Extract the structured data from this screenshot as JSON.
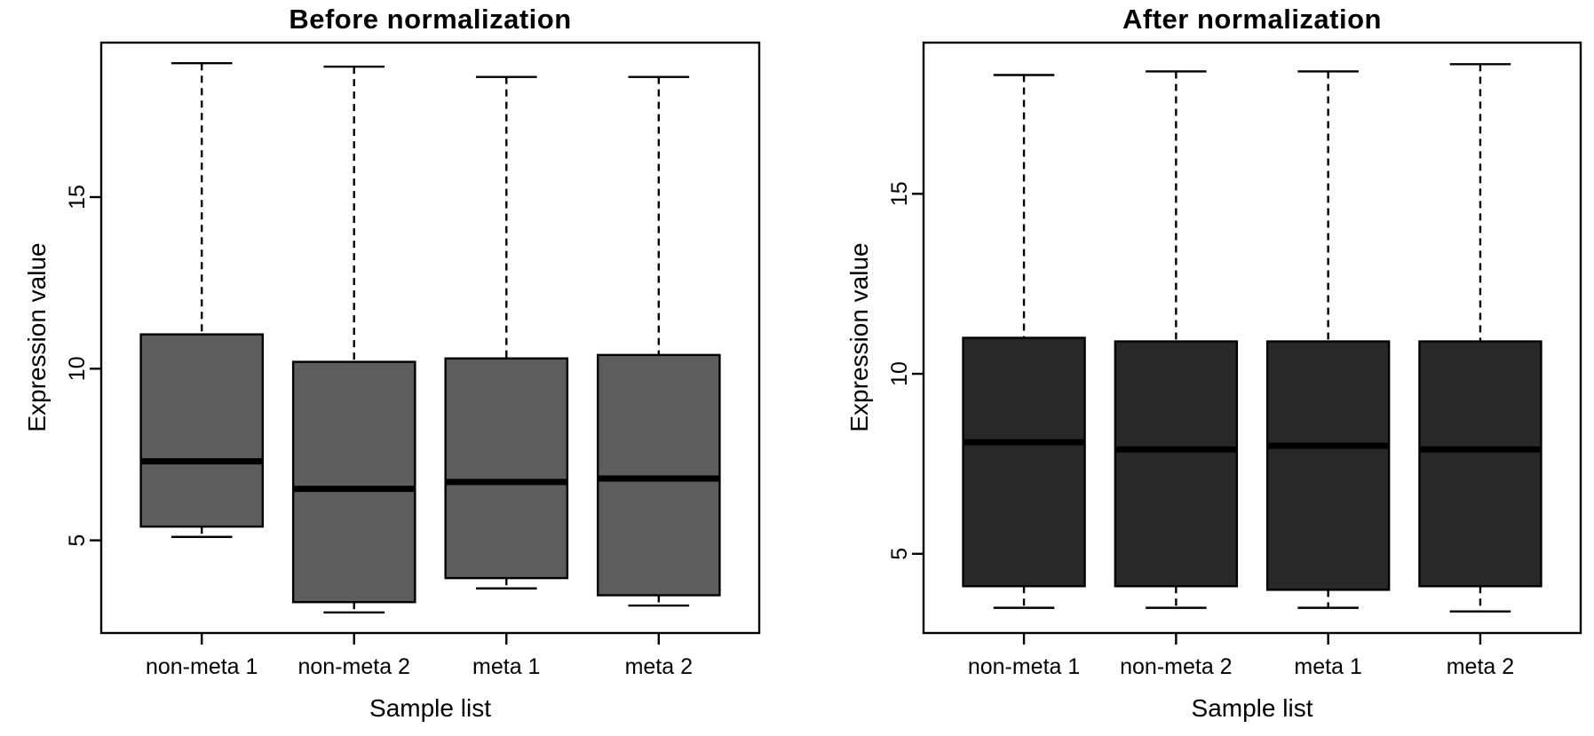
{
  "figure": {
    "background": "#ffffff",
    "line_color": "#000000"
  },
  "chart_data": [
    {
      "type": "boxplot",
      "title": "Before normalization",
      "xlabel": "Sample list",
      "ylabel": "Expression value",
      "categories": [
        "non-meta 1",
        "non-meta 2",
        "meta 1",
        "meta 2"
      ],
      "yticks": [
        5,
        10,
        15
      ],
      "ylim": [
        2.3,
        19.5
      ],
      "grid": false,
      "legend": "none",
      "box_fill": "#5d5d5d",
      "box_stroke": "#000000",
      "series": [
        {
          "category": "non-meta 1",
          "min": 5.1,
          "q1": 5.4,
          "median": 7.3,
          "q3": 11.0,
          "max": 18.9
        },
        {
          "category": "non-meta 2",
          "min": 2.9,
          "q1": 3.2,
          "median": 6.5,
          "q3": 10.2,
          "max": 18.8
        },
        {
          "category": "meta 1",
          "min": 3.6,
          "q1": 3.9,
          "median": 6.7,
          "q3": 10.3,
          "max": 18.5
        },
        {
          "category": "meta 2",
          "min": 3.1,
          "q1": 3.4,
          "median": 6.8,
          "q3": 10.4,
          "max": 18.5
        }
      ]
    },
    {
      "type": "boxplot",
      "title": "After normalization",
      "xlabel": "Sample list",
      "ylabel": "Expression value",
      "categories": [
        "non-meta 1",
        "non-meta 2",
        "meta 1",
        "meta 2"
      ],
      "yticks": [
        5,
        10,
        15
      ],
      "ylim": [
        2.8,
        19.2
      ],
      "grid": false,
      "legend": "none",
      "box_fill": "#282828",
      "box_stroke": "#000000",
      "series": [
        {
          "category": "non-meta 1",
          "min": 3.5,
          "q1": 4.1,
          "median": 8.1,
          "q3": 11.0,
          "max": 18.3
        },
        {
          "category": "non-meta 2",
          "min": 3.5,
          "q1": 4.1,
          "median": 7.9,
          "q3": 10.9,
          "max": 18.4
        },
        {
          "category": "meta 1",
          "min": 3.5,
          "q1": 4.0,
          "median": 8.0,
          "q3": 10.9,
          "max": 18.4
        },
        {
          "category": "meta 2",
          "min": 3.4,
          "q1": 4.1,
          "median": 7.9,
          "q3": 10.9,
          "max": 18.6
        }
      ]
    }
  ]
}
